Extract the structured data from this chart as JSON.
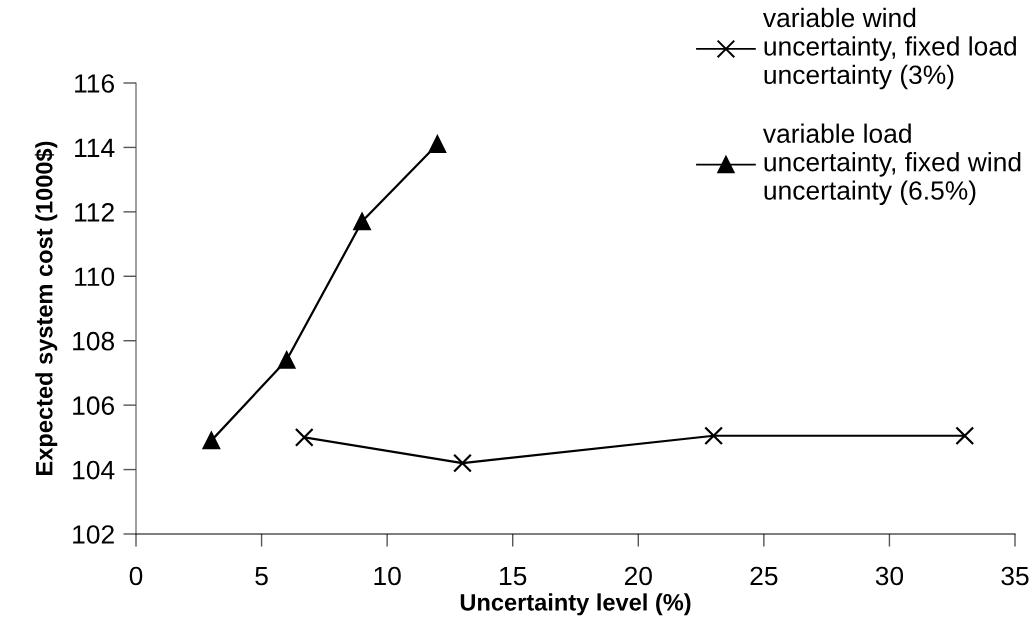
{
  "chart_data": {
    "type": "line",
    "xlabel": "Uncertainty level (%)",
    "ylabel": "Expected system cost (1000$)",
    "series": [
      {
        "name": "variable wind uncertainty, fixed load uncertainty (3%)",
        "color": "#000000",
        "marker": "cross",
        "x": [
          6.7,
          13,
          23,
          33
        ],
        "values": [
          105.0,
          104.2,
          105.05,
          105.05
        ]
      },
      {
        "name": "variable load uncertainty, fixed wind uncertainty (6.5%)",
        "color": "#000000",
        "marker": "triangle",
        "x": [
          3,
          6,
          9,
          12
        ],
        "values": [
          104.9,
          107.4,
          111.7,
          114.1
        ]
      }
    ],
    "xlim": [
      0,
      35
    ],
    "xticks": [
      0,
      5,
      10,
      15,
      20,
      25,
      30,
      35
    ],
    "ylim": [
      102,
      116
    ],
    "yticks": [
      102,
      104,
      106,
      108,
      110,
      112,
      114,
      116
    ],
    "grid": false,
    "legend": "top right",
    "line_style": "solid"
  }
}
